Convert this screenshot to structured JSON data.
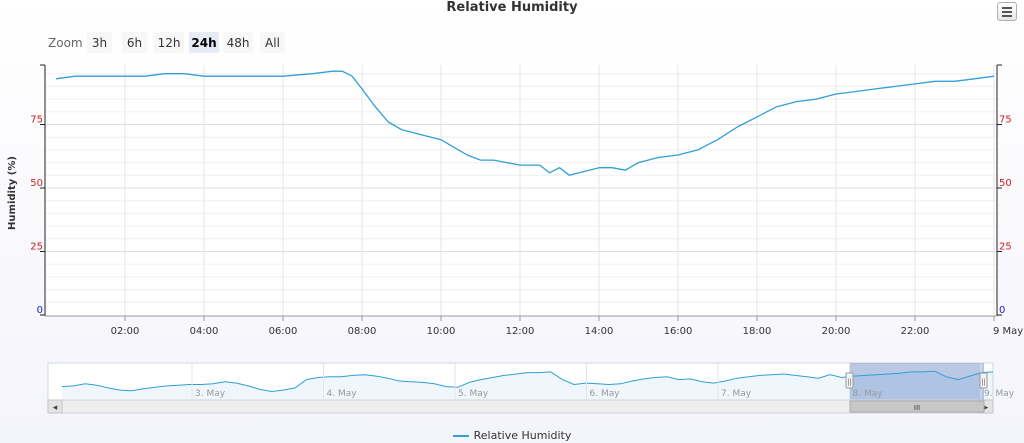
{
  "chart_data": {
    "type": "line",
    "title": "Relative Humidity",
    "ylabel": "Humidity (%)",
    "xlabel": "",
    "ylim": [
      0,
      100
    ],
    "y_ticks": [
      "0",
      "25",
      "50",
      "75"
    ],
    "x_ticks": [
      "02:00",
      "04:00",
      "06:00",
      "08:00",
      "10:00",
      "12:00",
      "14:00",
      "16:00",
      "18:00",
      "20:00",
      "22:00",
      "9 May"
    ],
    "grid": true,
    "legend_position": "bottom-center",
    "series": [
      {
        "name": "Relative Humidity",
        "color": "#2f9fd6",
        "points": [
          [
            "00:15",
            93
          ],
          [
            "00:45",
            94
          ],
          [
            "01:30",
            94
          ],
          [
            "02:30",
            94
          ],
          [
            "03:00",
            95
          ],
          [
            "03:30",
            95
          ],
          [
            "04:00",
            94
          ],
          [
            "05:00",
            94
          ],
          [
            "06:00",
            94
          ],
          [
            "06:45",
            95
          ],
          [
            "07:15",
            96
          ],
          [
            "07:30",
            96
          ],
          [
            "07:45",
            94
          ],
          [
            "08:00",
            89
          ],
          [
            "08:20",
            82
          ],
          [
            "08:40",
            76
          ],
          [
            "09:00",
            73
          ],
          [
            "09:30",
            71
          ],
          [
            "10:00",
            69
          ],
          [
            "10:20",
            66
          ],
          [
            "10:40",
            63
          ],
          [
            "11:00",
            61
          ],
          [
            "11:20",
            61
          ],
          [
            "11:40",
            60
          ],
          [
            "12:00",
            59
          ],
          [
            "12:30",
            59
          ],
          [
            "12:45",
            56
          ],
          [
            "13:00",
            58
          ],
          [
            "13:15",
            55
          ],
          [
            "13:30",
            56
          ],
          [
            "13:45",
            57
          ],
          [
            "14:00",
            58
          ],
          [
            "14:20",
            58
          ],
          [
            "14:40",
            57
          ],
          [
            "15:00",
            60
          ],
          [
            "15:30",
            62
          ],
          [
            "16:00",
            63
          ],
          [
            "16:30",
            65
          ],
          [
            "17:00",
            69
          ],
          [
            "17:30",
            74
          ],
          [
            "18:00",
            78
          ],
          [
            "18:30",
            82
          ],
          [
            "19:00",
            84
          ],
          [
            "19:30",
            85
          ],
          [
            "20:00",
            87
          ],
          [
            "20:30",
            88
          ],
          [
            "21:00",
            89
          ],
          [
            "21:30",
            90
          ],
          [
            "22:00",
            91
          ],
          [
            "22:30",
            92
          ],
          [
            "23:00",
            92
          ],
          [
            "23:30",
            93
          ],
          [
            "24:00",
            94
          ]
        ]
      }
    ],
    "navigator": {
      "x_labels": [
        "3. May",
        "4. May",
        "5. May",
        "6. May",
        "7. May",
        "8. May",
        "9. May"
      ],
      "values": [
        62,
        63,
        66,
        64,
        60,
        57,
        56,
        59,
        61,
        63,
        64,
        65,
        65,
        66,
        69,
        67,
        63,
        58,
        55,
        57,
        60,
        72,
        75,
        76,
        76,
        78,
        79,
        77,
        74,
        70,
        69,
        68,
        66,
        62,
        61,
        68,
        72,
        75,
        78,
        80,
        82,
        82,
        83,
        72,
        65,
        67,
        66,
        65,
        66,
        70,
        73,
        75,
        76,
        72,
        73,
        69,
        67,
        70,
        74,
        76,
        78,
        79,
        80,
        78,
        76,
        74,
        79,
        75,
        77,
        78,
        79,
        80,
        81,
        83,
        83,
        84,
        76,
        72,
        77,
        82,
        83
      ]
    }
  },
  "zoom": {
    "label": "Zoom",
    "buttons": [
      "3h",
      "6h",
      "12h",
      "24h",
      "48h",
      "All"
    ],
    "active": "24h"
  },
  "scrollbar": {
    "left_arrow": "◂",
    "right_arrow": "▸",
    "thumb_grip": "III",
    "handle_grip": "||"
  }
}
